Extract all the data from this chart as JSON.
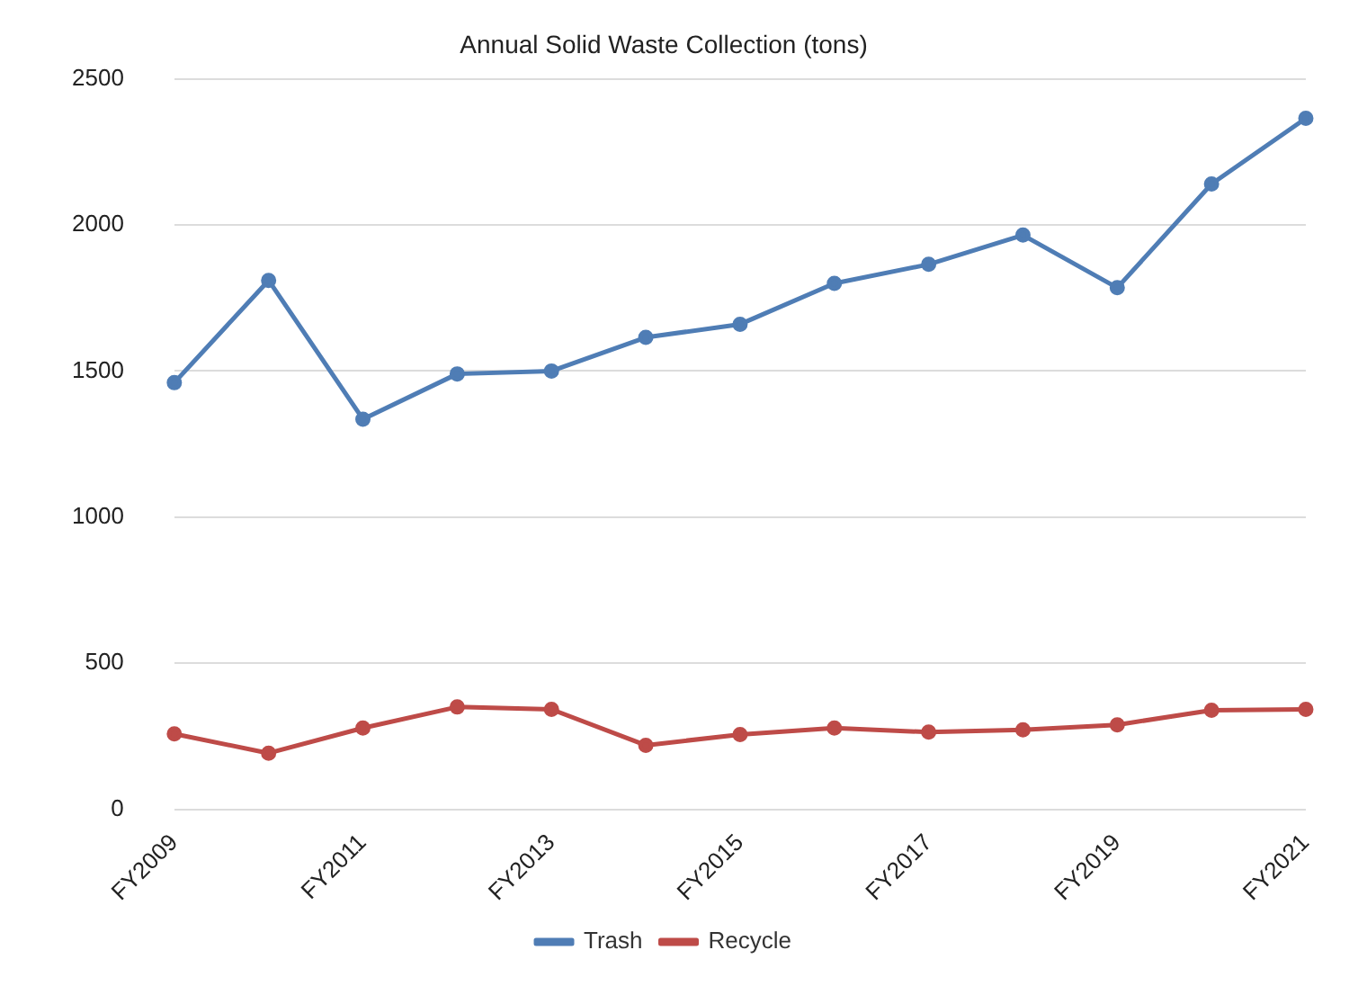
{
  "chart_data": {
    "type": "line",
    "title": "Annual Solid Waste Collection (tons)",
    "categories": [
      "FY2009",
      null,
      "FY2011",
      null,
      "FY2013",
      null,
      "FY2015",
      null,
      "FY2017",
      null,
      "FY2019",
      null,
      "FY2021"
    ],
    "series": [
      {
        "name": "Trash",
        "color": "#4f7db5",
        "values": [
          1460,
          1810,
          1335,
          1490,
          1500,
          1615,
          1660,
          1800,
          1865,
          1965,
          1785,
          2140,
          2365
        ]
      },
      {
        "name": "Recycle",
        "color": "#be4b48",
        "values": [
          258,
          192,
          278,
          350,
          342,
          219,
          256,
          278,
          264,
          272,
          289,
          339,
          342
        ]
      }
    ],
    "ylim": [
      0,
      2500
    ],
    "yticks": [
      0,
      500,
      1000,
      1500,
      2000,
      2500
    ],
    "grid": "y",
    "legend": "bottom",
    "marker": "circle",
    "line_style": "solid"
  }
}
